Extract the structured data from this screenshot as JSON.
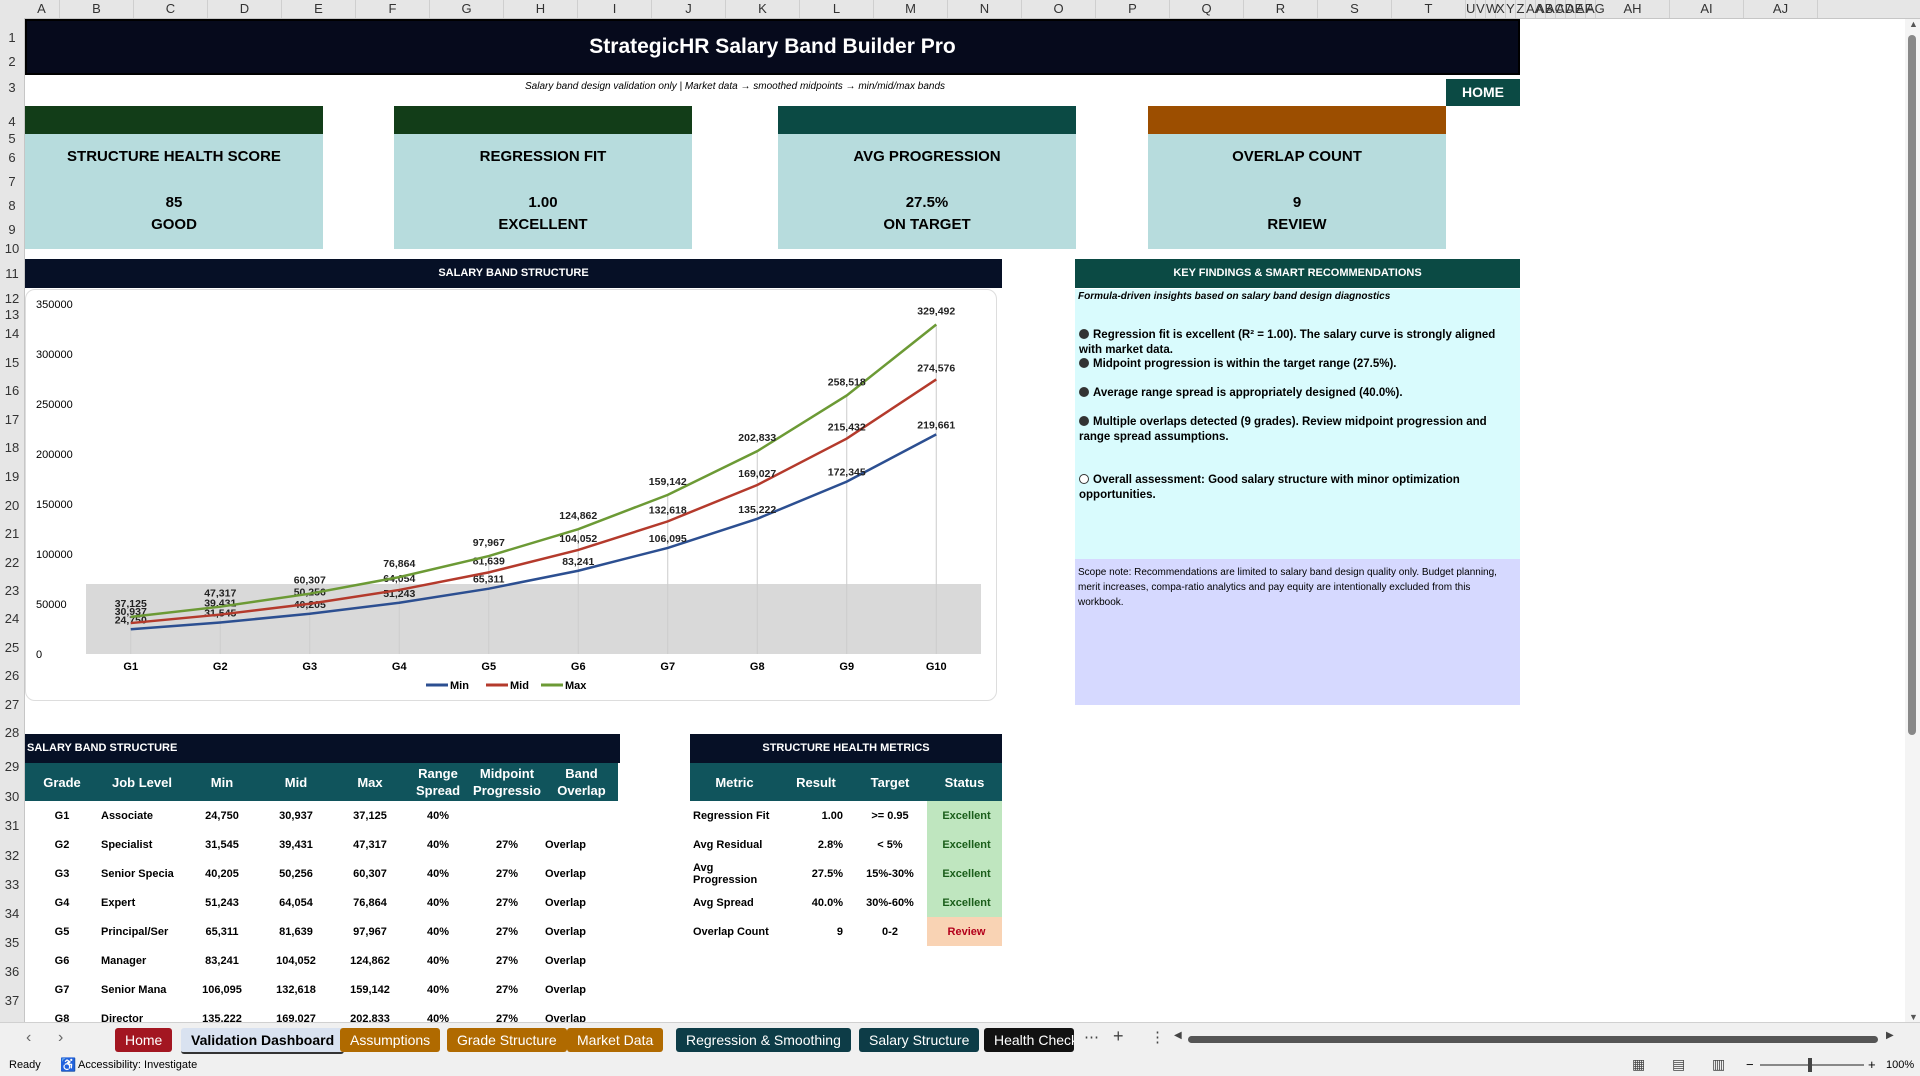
{
  "columns": [
    "A",
    "B",
    "C",
    "D",
    "E",
    "F",
    "G",
    "H",
    "I",
    "J",
    "K",
    "L",
    "M",
    "N",
    "O",
    "P",
    "Q",
    "R",
    "S",
    "T",
    "U",
    "V",
    "W",
    "X",
    "Y",
    "Z",
    "AA",
    "AB",
    "AC",
    "AD",
    "AE",
    "AF",
    "AG",
    "AH",
    "AI",
    "AJ"
  ],
  "rows": [
    "1",
    "2",
    "3",
    "4",
    "5",
    "6",
    "7",
    "8",
    "9",
    "10",
    "11",
    "12",
    "13",
    "14",
    "15",
    "16",
    "17",
    "18",
    "19",
    "20",
    "21",
    "22",
    "23",
    "24",
    "25",
    "26",
    "27",
    "28",
    "29",
    "30",
    "31",
    "32",
    "33",
    "34",
    "35",
    "36",
    "37"
  ],
  "banner": {
    "title": "StrategicHR Salary Band Builder Pro"
  },
  "subtitle": "Salary band design validation only  |  Market data → smoothed midpoints → min/mid/max bands",
  "home_button": "HOME",
  "colors": {
    "accent_green": "#123d18",
    "teal": "#0b4a44",
    "orange": "#9c4e00",
    "navy": "#061026"
  },
  "kpis": [
    {
      "label": "STRUCTURE HEALTH SCORE",
      "value": "85",
      "status": "GOOD"
    },
    {
      "label": "REGRESSION FIT",
      "value": "1.00",
      "status": "EXCELLENT"
    },
    {
      "label": "AVG PROGRESSION",
      "value": "27.5%",
      "status": "ON TARGET"
    },
    {
      "label": "OVERLAP COUNT",
      "value": "9",
      "status": "REVIEW"
    }
  ],
  "chart_panel_title": "SALARY BAND STRUCTURE",
  "chart_data": {
    "type": "line",
    "categories": [
      "G1",
      "G2",
      "G3",
      "G4",
      "G5",
      "G6",
      "G7",
      "G8",
      "G9",
      "G10"
    ],
    "series": [
      {
        "name": "Min",
        "color": "#2c4f91",
        "values": [
          24750,
          31545,
          40205,
          51243,
          65311,
          83241,
          106095,
          135222,
          172345,
          219661
        ]
      },
      {
        "name": "Mid",
        "color": "#b43a2c",
        "values": [
          30937,
          39431,
          50256,
          64054,
          81639,
          104052,
          132618,
          169027,
          215432,
          274576
        ]
      },
      {
        "name": "Max",
        "color": "#6c9a35",
        "values": [
          37125,
          47317,
          60307,
          76864,
          97967,
          124862,
          159142,
          202833,
          258518,
          329492
        ]
      }
    ],
    "yticks": [
      "0",
      "50000",
      "100000",
      "150000",
      "200000",
      "250000",
      "300000",
      "350000"
    ],
    "ylim": [
      0,
      350000
    ],
    "legend_position": "bottom",
    "data_labels": true
  },
  "findings": {
    "title": "KEY FINDINGS & SMART RECOMMENDATIONS",
    "subtitle": "Formula-driven insights based on salary band design diagnostics",
    "items": [
      "Regression fit is excellent (R² = 1.00). The salary curve is strongly aligned with market data.",
      "Midpoint progression is within the target range (27.5%).",
      "Average range spread is appropriately designed (40.0%).",
      "Multiple overlaps detected (9 grades). Review midpoint progression and range spread assumptions.",
      "Overall assessment: Good salary structure with minor optimization opportunities."
    ],
    "scope_note": "Scope note: Recommendations are limited to salary band design quality only. Budget planning, merit increases, compa-ratio analytics and pay equity are intentionally excluded from this workbook."
  },
  "band_table": {
    "title": "SALARY BAND STRUCTURE",
    "headers": [
      "Grade",
      "Job Level",
      "Min",
      "Mid",
      "Max",
      "Range Spread",
      "Midpoint Progressio",
      "Band Overlap"
    ],
    "rows": [
      [
        "G1",
        "Associate",
        "24,750",
        "30,937",
        "37,125",
        "40%",
        "",
        ""
      ],
      [
        "G2",
        "Specialist",
        "31,545",
        "39,431",
        "47,317",
        "40%",
        "27%",
        "Overlap"
      ],
      [
        "G3",
        "Senior Specia",
        "40,205",
        "50,256",
        "60,307",
        "40%",
        "27%",
        "Overlap"
      ],
      [
        "G4",
        "Expert",
        "51,243",
        "64,054",
        "76,864",
        "40%",
        "27%",
        "Overlap"
      ],
      [
        "G5",
        "Principal/Ser",
        "65,311",
        "81,639",
        "97,967",
        "40%",
        "27%",
        "Overlap"
      ],
      [
        "G6",
        "Manager",
        "83,241",
        "104,052",
        "124,862",
        "40%",
        "27%",
        "Overlap"
      ],
      [
        "G7",
        "Senior Mana",
        "106,095",
        "132,618",
        "159,142",
        "40%",
        "27%",
        "Overlap"
      ],
      [
        "G8",
        "Director",
        "135,222",
        "169,027",
        "202,833",
        "40%",
        "27%",
        "Overlap"
      ]
    ]
  },
  "metrics_table": {
    "title": "STRUCTURE HEALTH METRICS",
    "headers": [
      "Metric",
      "Result",
      "Target",
      "Status"
    ],
    "rows": [
      [
        "Regression Fit",
        "1.00",
        ">= 0.95",
        "Excellent"
      ],
      [
        "Avg Residual",
        "2.8%",
        "< 5%",
        "Excellent"
      ],
      [
        "Avg Progression",
        "27.5%",
        "15%-30%",
        "Excellent"
      ],
      [
        "Avg Spread",
        "40.0%",
        "30%-60%",
        "Excellent"
      ],
      [
        "Overlap Count",
        "9",
        "0-2",
        "Review"
      ]
    ]
  },
  "tabs": [
    {
      "label": "Home",
      "color": "#a31621",
      "active": false
    },
    {
      "label": "Validation Dashboard",
      "color": "#d9e2f0",
      "active": true
    },
    {
      "label": "Assumptions",
      "color": "#b06a00",
      "active": false
    },
    {
      "label": "Grade Structure",
      "color": "#b06a00",
      "active": false
    },
    {
      "label": "Market Data",
      "color": "#b06a00",
      "active": false
    },
    {
      "label": "Regression & Smoothing",
      "color": "#0d3c47",
      "active": false
    },
    {
      "label": "Salary Structure",
      "color": "#0d3c47",
      "active": false
    },
    {
      "label": "Health Check",
      "color": "#111111",
      "active": false
    }
  ],
  "status": {
    "ready": "Ready",
    "accessibility": "Accessibility: Investigate",
    "zoom": "100%"
  }
}
